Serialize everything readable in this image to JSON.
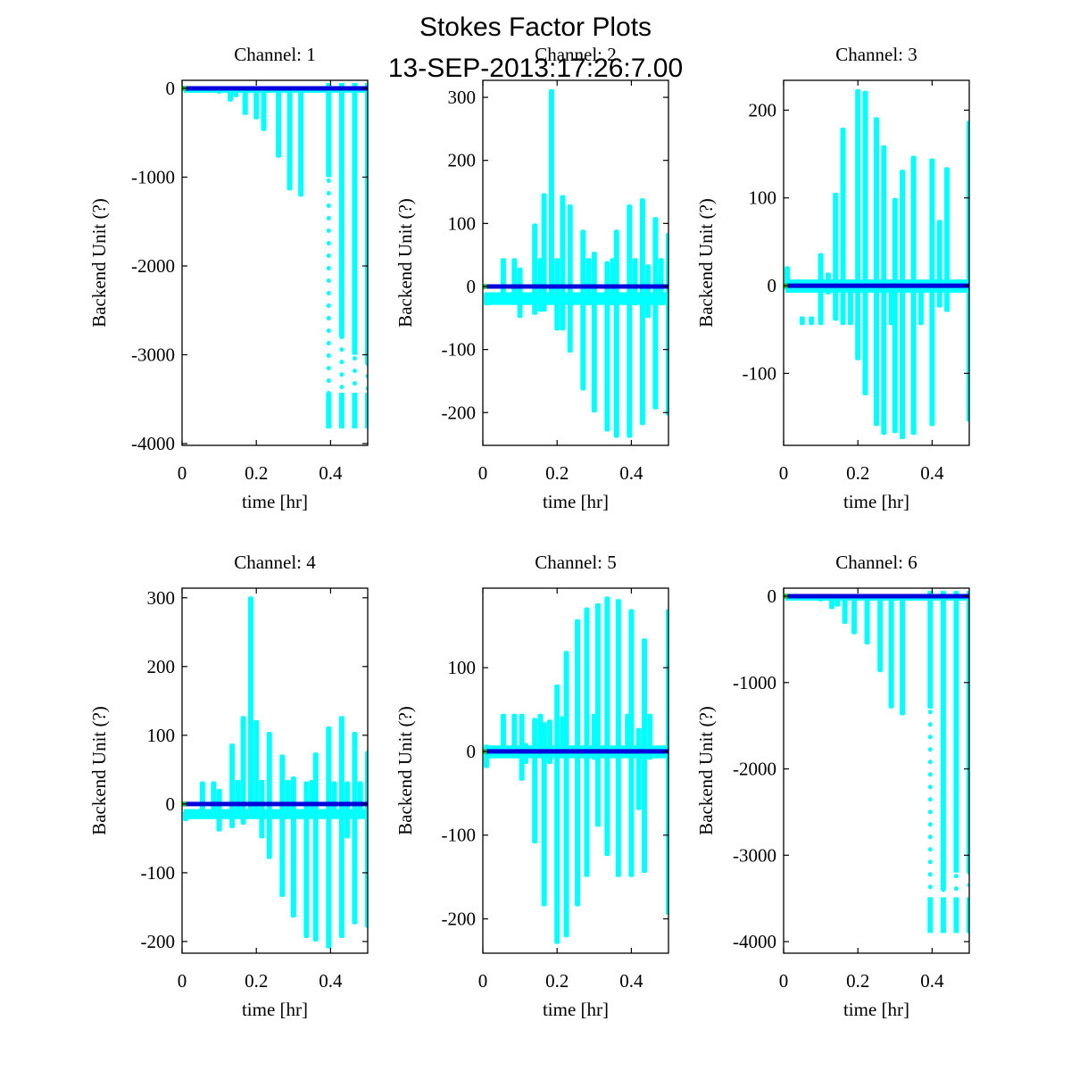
{
  "chart_data": {
    "type": "scatter",
    "title": "Stokes Factor Plots",
    "subtitle": "13-SEP-2013:17:26:7.00",
    "colors": {
      "scatter": "#00ffff",
      "mean_line": "#0000dd",
      "start_marker": "#22cc22",
      "axes": "#000000",
      "background": "#ffffff"
    },
    "legend": "none",
    "grid": false,
    "panels": [
      {
        "title": "Channel: 1",
        "xlabel": "time [hr]",
        "ylabel": "Backend Unit (?)",
        "xlim": [
          0,
          0.5
        ],
        "ylim": [
          -4020,
          90
        ],
        "xticks": [
          0,
          0.2,
          0.4
        ],
        "xtick_labels": [
          "0",
          "0.2",
          "0.4"
        ],
        "yticks": [
          0,
          -1000,
          -2000,
          -3000,
          -4000
        ],
        "ytick_labels": [
          "0",
          "-1000",
          "-2000",
          "-3000",
          "-4000"
        ],
        "mean_line": 0,
        "baseline_band": [
          -20,
          0
        ],
        "spikes": [
          {
            "x": 0.04,
            "min": -40,
            "max": 0
          },
          {
            "x": 0.06,
            "min": -30,
            "max": 0
          },
          {
            "x": 0.1,
            "min": -60,
            "max": 0
          },
          {
            "x": 0.13,
            "min": -150,
            "max": 0
          },
          {
            "x": 0.145,
            "min": -100,
            "max": 0
          },
          {
            "x": 0.17,
            "min": -300,
            "max": 0
          },
          {
            "x": 0.2,
            "min": -350,
            "max": 0
          },
          {
            "x": 0.22,
            "min": -480,
            "max": 0
          },
          {
            "x": 0.26,
            "min": -780,
            "max": 0
          },
          {
            "x": 0.29,
            "min": -1150,
            "max": 0
          },
          {
            "x": 0.32,
            "min": -1220,
            "max": 0
          },
          {
            "x": 0.395,
            "min": -3830,
            "max": 60,
            "sparse_below": -1000
          },
          {
            "x": 0.43,
            "min": -3830,
            "max": 60,
            "sparse_below": -2800
          },
          {
            "x": 0.465,
            "min": -3830,
            "max": 60,
            "sparse_below": -3000
          },
          {
            "x": 0.5,
            "min": -3830,
            "max": 60,
            "sparse_below": -3100
          }
        ]
      },
      {
        "title": "Channel: 2",
        "xlabel": "time [hr]",
        "ylabel": "Backend Unit (?)",
        "xlim": [
          0,
          0.5
        ],
        "ylim": [
          -252,
          327
        ],
        "xticks": [
          0,
          0.2,
          0.4
        ],
        "xtick_labels": [
          "0",
          "0.2",
          "0.4"
        ],
        "yticks": [
          300,
          200,
          100,
          0,
          -100,
          -200
        ],
        "ytick_labels": [
          "300",
          "200",
          "100",
          "0",
          "-100",
          "-200"
        ],
        "mean_line": 0,
        "baseline_band": [
          -25,
          -12
        ],
        "spikes": [
          {
            "x": 0.01,
            "min": -30,
            "max": -10
          },
          {
            "x": 0.055,
            "min": -20,
            "max": 45
          },
          {
            "x": 0.085,
            "min": -20,
            "max": 45
          },
          {
            "x": 0.1,
            "min": -50,
            "max": 30
          },
          {
            "x": 0.14,
            "min": -45,
            "max": 100
          },
          {
            "x": 0.155,
            "min": -40,
            "max": 45
          },
          {
            "x": 0.165,
            "min": -40,
            "max": 148
          },
          {
            "x": 0.185,
            "min": -25,
            "max": 313
          },
          {
            "x": 0.2,
            "min": -70,
            "max": 45
          },
          {
            "x": 0.215,
            "min": -70,
            "max": 145
          },
          {
            "x": 0.235,
            "min": -105,
            "max": 130
          },
          {
            "x": 0.27,
            "min": -165,
            "max": 90
          },
          {
            "x": 0.285,
            "min": -30,
            "max": 45
          },
          {
            "x": 0.3,
            "min": -200,
            "max": 55
          },
          {
            "x": 0.335,
            "min": -230,
            "max": 40
          },
          {
            "x": 0.35,
            "min": -30,
            "max": 45
          },
          {
            "x": 0.36,
            "min": -240,
            "max": 90
          },
          {
            "x": 0.395,
            "min": -240,
            "max": 130
          },
          {
            "x": 0.41,
            "min": -30,
            "max": 45
          },
          {
            "x": 0.43,
            "min": -220,
            "max": 140
          },
          {
            "x": 0.445,
            "min": -50,
            "max": 35
          },
          {
            "x": 0.465,
            "min": -195,
            "max": 110
          },
          {
            "x": 0.48,
            "min": -30,
            "max": 45
          },
          {
            "x": 0.5,
            "min": -205,
            "max": 85
          }
        ]
      },
      {
        "title": "Channel: 3",
        "xlabel": "time [hr]",
        "ylabel": "Backend Unit (?)",
        "xlim": [
          0,
          0.5
        ],
        "ylim": [
          -182,
          234
        ],
        "xticks": [
          0,
          0.2,
          0.4
        ],
        "xtick_labels": [
          "0",
          "0.2",
          "0.4"
        ],
        "yticks": [
          200,
          100,
          0,
          -100
        ],
        "ytick_labels": [
          "200",
          "100",
          "0",
          "-100"
        ],
        "mean_line": 0,
        "baseline_band": [
          -5,
          5
        ],
        "spikes": [
          {
            "x": 0.01,
            "min": -5,
            "max": 22
          },
          {
            "x": 0.05,
            "min": -45,
            "max": -35
          },
          {
            "x": 0.075,
            "min": -45,
            "max": -35
          },
          {
            "x": 0.1,
            "min": -45,
            "max": 37
          },
          {
            "x": 0.12,
            "min": -10,
            "max": 15
          },
          {
            "x": 0.14,
            "min": -40,
            "max": 106
          },
          {
            "x": 0.16,
            "min": -45,
            "max": 180
          },
          {
            "x": 0.18,
            "min": -45,
            "max": 5
          },
          {
            "x": 0.2,
            "min": -85,
            "max": 224
          },
          {
            "x": 0.22,
            "min": -125,
            "max": 222
          },
          {
            "x": 0.25,
            "min": -160,
            "max": 192
          },
          {
            "x": 0.27,
            "min": -170,
            "max": 160
          },
          {
            "x": 0.29,
            "min": -45,
            "max": 5
          },
          {
            "x": 0.3,
            "min": -168,
            "max": 100
          },
          {
            "x": 0.32,
            "min": -175,
            "max": 132
          },
          {
            "x": 0.35,
            "min": -170,
            "max": 148
          },
          {
            "x": 0.37,
            "min": -45,
            "max": 5
          },
          {
            "x": 0.4,
            "min": -160,
            "max": 145
          },
          {
            "x": 0.42,
            "min": -25,
            "max": 75
          },
          {
            "x": 0.44,
            "min": -30,
            "max": 135
          },
          {
            "x": 0.5,
            "min": -155,
            "max": 188
          }
        ]
      },
      {
        "title": "Channel: 4",
        "xlabel": "time [hr]",
        "ylabel": "Backend Unit (?)",
        "xlim": [
          0,
          0.5
        ],
        "ylim": [
          -217,
          314
        ],
        "xticks": [
          0,
          0.2,
          0.4
        ],
        "xtick_labels": [
          "0",
          "0.2",
          "0.4"
        ],
        "yticks": [
          300,
          200,
          100,
          0,
          -100,
          -200
        ],
        "ytick_labels": [
          "300",
          "200",
          "100",
          "0",
          "-100",
          "-200"
        ],
        "mean_line": 0,
        "baseline_band": [
          -18,
          -10
        ],
        "spikes": [
          {
            "x": 0.01,
            "min": -25,
            "max": -10
          },
          {
            "x": 0.055,
            "min": -15,
            "max": 33
          },
          {
            "x": 0.085,
            "min": -15,
            "max": 33
          },
          {
            "x": 0.1,
            "min": -40,
            "max": 22
          },
          {
            "x": 0.135,
            "min": -35,
            "max": 88
          },
          {
            "x": 0.15,
            "min": -20,
            "max": 35
          },
          {
            "x": 0.165,
            "min": -30,
            "max": 128
          },
          {
            "x": 0.185,
            "min": -15,
            "max": 302
          },
          {
            "x": 0.2,
            "min": -20,
            "max": 122
          },
          {
            "x": 0.215,
            "min": -50,
            "max": 35
          },
          {
            "x": 0.235,
            "min": -80,
            "max": 105
          },
          {
            "x": 0.27,
            "min": -135,
            "max": 72
          },
          {
            "x": 0.285,
            "min": -20,
            "max": 35
          },
          {
            "x": 0.3,
            "min": -165,
            "max": 40
          },
          {
            "x": 0.335,
            "min": -195,
            "max": 33
          },
          {
            "x": 0.35,
            "min": -20,
            "max": 35
          },
          {
            "x": 0.36,
            "min": -200,
            "max": 75
          },
          {
            "x": 0.395,
            "min": -210,
            "max": 113
          },
          {
            "x": 0.41,
            "min": -15,
            "max": 33
          },
          {
            "x": 0.43,
            "min": -195,
            "max": 128
          },
          {
            "x": 0.445,
            "min": -50,
            "max": 33
          },
          {
            "x": 0.465,
            "min": -175,
            "max": 105
          },
          {
            "x": 0.48,
            "min": -15,
            "max": 33
          },
          {
            "x": 0.5,
            "min": -180,
            "max": 77
          }
        ]
      },
      {
        "title": "Channel: 5",
        "xlabel": "time [hr]",
        "ylabel": "Backend Unit (?)",
        "xlim": [
          0,
          0.5
        ],
        "ylim": [
          -241,
          195
        ],
        "xticks": [
          0,
          0.2,
          0.4
        ],
        "xtick_labels": [
          "0",
          "0.2",
          "0.4"
        ],
        "yticks": [
          100,
          0,
          -100,
          -200
        ],
        "ytick_labels": [
          "100",
          "0",
          "-100",
          "-200"
        ],
        "mean_line": 0,
        "baseline_band": [
          -5,
          5
        ],
        "spikes": [
          {
            "x": 0.01,
            "min": -20,
            "max": 8
          },
          {
            "x": 0.055,
            "min": -5,
            "max": 45
          },
          {
            "x": 0.085,
            "min": -5,
            "max": 45
          },
          {
            "x": 0.105,
            "min": -35,
            "max": 45
          },
          {
            "x": 0.115,
            "min": -15,
            "max": 10
          },
          {
            "x": 0.14,
            "min": -110,
            "max": 40
          },
          {
            "x": 0.155,
            "min": -5,
            "max": 45
          },
          {
            "x": 0.165,
            "min": -185,
            "max": 35
          },
          {
            "x": 0.18,
            "min": -15,
            "max": 38
          },
          {
            "x": 0.2,
            "min": -230,
            "max": 80
          },
          {
            "x": 0.215,
            "min": -5,
            "max": 42
          },
          {
            "x": 0.225,
            "min": -222,
            "max": 120
          },
          {
            "x": 0.255,
            "min": -185,
            "max": 158
          },
          {
            "x": 0.28,
            "min": -150,
            "max": 172
          },
          {
            "x": 0.3,
            "min": -10,
            "max": 45
          },
          {
            "x": 0.31,
            "min": -90,
            "max": 177
          },
          {
            "x": 0.335,
            "min": -125,
            "max": 185
          },
          {
            "x": 0.365,
            "min": -150,
            "max": 182
          },
          {
            "x": 0.39,
            "min": -5,
            "max": 45
          },
          {
            "x": 0.4,
            "min": -150,
            "max": 170
          },
          {
            "x": 0.42,
            "min": -70,
            "max": 28
          },
          {
            "x": 0.435,
            "min": -145,
            "max": 135
          },
          {
            "x": 0.45,
            "min": -10,
            "max": 45
          },
          {
            "x": 0.5,
            "min": -195,
            "max": 170
          }
        ]
      },
      {
        "title": "Channel: 6",
        "xlabel": "time [hr]",
        "ylabel": "Backend Unit (?)",
        "xlim": [
          0,
          0.5
        ],
        "ylim": [
          -4134,
          93
        ],
        "xticks": [
          0,
          0.2,
          0.4
        ],
        "xtick_labels": [
          "0",
          "0.2",
          "0.4"
        ],
        "yticks": [
          0,
          -1000,
          -2000,
          -3000,
          -4000
        ],
        "ytick_labels": [
          "0",
          "-1000",
          "-2000",
          "-3000",
          "-4000"
        ],
        "mean_line": 0,
        "baseline_band": [
          -20,
          0
        ],
        "spikes": [
          {
            "x": 0.04,
            "min": -40,
            "max": 0
          },
          {
            "x": 0.06,
            "min": -30,
            "max": 0
          },
          {
            "x": 0.1,
            "min": -60,
            "max": 0
          },
          {
            "x": 0.13,
            "min": -150,
            "max": 0
          },
          {
            "x": 0.145,
            "min": -120,
            "max": 0
          },
          {
            "x": 0.165,
            "min": -320,
            "max": 0
          },
          {
            "x": 0.19,
            "min": -440,
            "max": 0
          },
          {
            "x": 0.225,
            "min": -560,
            "max": 0
          },
          {
            "x": 0.26,
            "min": -880,
            "max": 0
          },
          {
            "x": 0.29,
            "min": -1300,
            "max": 0
          },
          {
            "x": 0.32,
            "min": -1380,
            "max": 0
          },
          {
            "x": 0.395,
            "min": -3900,
            "max": 60,
            "sparse_below": -1300
          },
          {
            "x": 0.43,
            "min": -3900,
            "max": 60,
            "sparse_below": -3400
          },
          {
            "x": 0.465,
            "min": -3900,
            "max": 60,
            "sparse_below": -3200
          },
          {
            "x": 0.5,
            "min": -3900,
            "max": 60,
            "sparse_below": -3200
          }
        ]
      }
    ]
  }
}
